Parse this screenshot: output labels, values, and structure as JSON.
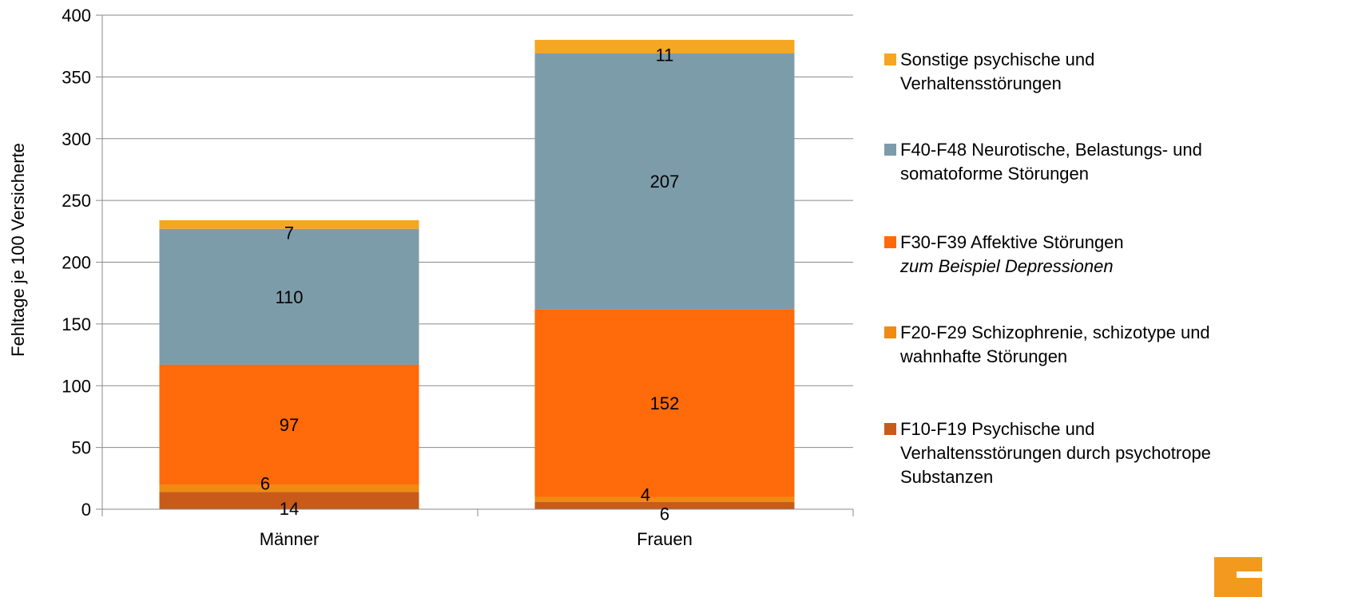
{
  "chart_data": {
    "type": "bar",
    "stacked": true,
    "categories": [
      "Männer",
      "Frauen"
    ],
    "ylabel": "Fehltage je 100 Versicherte",
    "ylim": [
      0,
      400
    ],
    "yticks": [
      0,
      50,
      100,
      150,
      200,
      250,
      300,
      350,
      400
    ],
    "grid": true,
    "legend_position": "right",
    "series": [
      {
        "name": "F10-F19 Psychische und Verhaltensstörungen durch psychotrope Substanzen",
        "color": "#c85a1a",
        "values": [
          14,
          6
        ]
      },
      {
        "name": "F20-F29 Schizophrenie, schizotype und wahnhafte Störungen",
        "color": "#f08a10",
        "values": [
          6,
          4
        ]
      },
      {
        "name": "F30-F39 Affektive Störungen",
        "note": "zum Beispiel Depressionen",
        "color": "#ff6a0a",
        "values": [
          97,
          152
        ]
      },
      {
        "name": "F40-F48 Neurotische, Belastungs- und somatoforme Störungen",
        "color": "#7d9caa",
        "values": [
          110,
          207
        ]
      },
      {
        "name": "Sonstige psychische und Verhaltensstörungen",
        "color": "#f5a623",
        "values": [
          7,
          11
        ]
      }
    ],
    "legend": [
      {
        "lines": [
          "Sonstige psychische und",
          "Verhaltensstörungen"
        ],
        "note": "",
        "color": "#f5a623"
      },
      {
        "lines": [
          "F40-F48 Neurotische, Belastungs- und",
          "somatoforme Störungen"
        ],
        "note": "",
        "color": "#7d9caa"
      },
      {
        "lines": [
          "F30-F39 Affektive Störungen"
        ],
        "note": "zum Beispiel Depressionen",
        "color": "#ff6a0a"
      },
      {
        "lines": [
          "F20-F29 Schizophrenie, schizotype und",
          "wahnhafte Störungen"
        ],
        "note": "",
        "color": "#f08a10"
      },
      {
        "lines": [
          "F10-F19 Psychische und",
          "Verhaltensstörungen durch psychotrope",
          "Substanzen"
        ],
        "note": "",
        "color": "#c85a1a"
      }
    ]
  }
}
